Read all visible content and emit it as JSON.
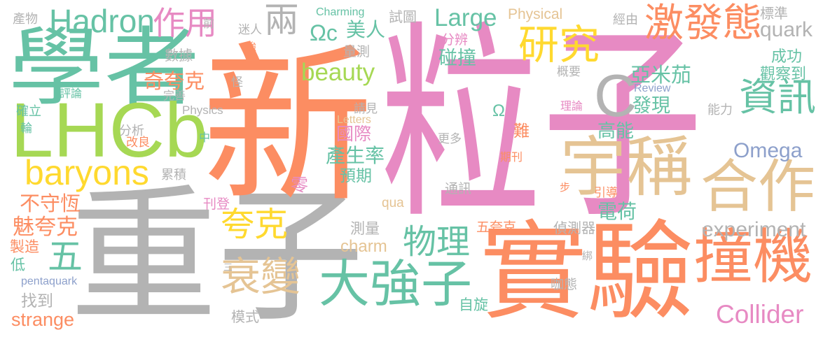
{
  "words": [
    {
      "text": "粒子",
      "color": "#e78ac3"
    },
    {
      "text": "重子",
      "color": "#b3b3b3"
    },
    {
      "text": "新",
      "color": "#fc8d62"
    },
    {
      "text": "實驗",
      "color": "#fc8d62"
    },
    {
      "text": "學者",
      "color": "#66c2a5"
    },
    {
      "text": "LHCb",
      "color": "#a6d854"
    },
    {
      "text": "C",
      "color": "#b3b3b3"
    },
    {
      "text": "宇稱",
      "color": "#e5c494"
    },
    {
      "text": "合作",
      "color": "#e5c494"
    },
    {
      "text": "撞機",
      "color": "#fc8d62"
    },
    {
      "text": "激發態",
      "color": "#fc8d62"
    },
    {
      "text": "研究",
      "color": "#ffd92f"
    },
    {
      "text": "資訊",
      "color": "#66c2a5"
    },
    {
      "text": "大強子",
      "color": "#66c2a5"
    },
    {
      "text": "衰變",
      "color": "#e5c494"
    },
    {
      "text": "夸克",
      "color": "#ffd92f"
    },
    {
      "text": "物理",
      "color": "#66c2a5"
    },
    {
      "text": "五",
      "color": "#66c2a5"
    },
    {
      "text": "作用",
      "color": "#e78ac3"
    },
    {
      "text": "Hadron",
      "color": "#66c2a5"
    },
    {
      "text": "baryons",
      "color": "#ffd92f"
    },
    {
      "text": "兩",
      "color": "#b3b3b3"
    },
    {
      "text": "Large",
      "color": "#66c2a5"
    },
    {
      "text": "quark",
      "color": "#b3b3b3"
    },
    {
      "text": "beauty",
      "color": "#a6d854"
    },
    {
      "text": "奇夸克",
      "color": "#fc8d62"
    },
    {
      "text": "亞米茄",
      "color": "#66c2a5"
    },
    {
      "text": "發現",
      "color": "#66c2a5"
    },
    {
      "text": "高能",
      "color": "#66c2a5"
    },
    {
      "text": "Omega",
      "color": "#8da0cb"
    },
    {
      "text": "Collider",
      "color": "#e78ac3"
    },
    {
      "text": "experiment",
      "color": "#b3b3b3"
    },
    {
      "text": "電荷",
      "color": "#66c2a5"
    },
    {
      "text": "國際",
      "color": "#e78ac3"
    },
    {
      "text": "產生率",
      "color": "#66c2a5"
    },
    {
      "text": "預期",
      "color": "#66c2a5"
    },
    {
      "text": "零",
      "color": "#e78ac3"
    },
    {
      "text": "美人",
      "color": "#66c2a5"
    },
    {
      "text": "Ωc",
      "color": "#66c2a5"
    },
    {
      "text": "試圖",
      "color": "#b3b3b3"
    },
    {
      "text": "Physical",
      "color": "#e5c494"
    },
    {
      "text": "Charming",
      "color": "#66c2a5"
    },
    {
      "text": "前",
      "color": "#b3b3b3"
    },
    {
      "text": "迷人",
      "color": "#b3b3b3"
    },
    {
      "text": "數據",
      "color": "#b3b3b3"
    },
    {
      "text": "強",
      "color": "#fc8d62"
    },
    {
      "text": "量測",
      "color": "#b3b3b3"
    },
    {
      "text": "分辨",
      "color": "#e78ac3"
    },
    {
      "text": "碰撞",
      "color": "#66c2a5"
    },
    {
      "text": "經由",
      "color": "#b3b3b3"
    },
    {
      "text": "標準",
      "color": "#b3b3b3"
    },
    {
      "text": "產物",
      "color": "#b3b3b3"
    },
    {
      "text": "成功",
      "color": "#66c2a5"
    },
    {
      "text": "概要",
      "color": "#b3b3b3"
    },
    {
      "text": "觀察到",
      "color": "#66c2a5"
    },
    {
      "text": "Review",
      "color": "#8da0cb"
    },
    {
      "text": "Ω",
      "color": "#66c2a5"
    },
    {
      "text": "理論",
      "color": "#e78ac3"
    },
    {
      "text": "能力",
      "color": "#b3b3b3"
    },
    {
      "text": "難",
      "color": "#fc8d62"
    },
    {
      "text": "更多",
      "color": "#b3b3b3"
    },
    {
      "text": "期刊",
      "color": "#fc8d62"
    },
    {
      "text": "Letters",
      "color": "#e5c494"
    },
    {
      "text": "請見",
      "color": "#b3b3b3"
    },
    {
      "text": "怪",
      "color": "#b3b3b3"
    },
    {
      "text": "完善",
      "color": "#b3b3b3"
    },
    {
      "text": "Physics",
      "color": "#b3b3b3"
    },
    {
      "text": "評論",
      "color": "#66c2a5"
    },
    {
      "text": "確立",
      "color": "#66c2a5"
    },
    {
      "text": "輪",
      "color": "#66c2a5"
    },
    {
      "text": "分析",
      "color": "#b3b3b3"
    },
    {
      "text": "改良",
      "color": "#fc8d62"
    },
    {
      "text": "中",
      "color": "#66c2a5"
    },
    {
      "text": "累積",
      "color": "#b3b3b3"
    },
    {
      "text": "通訊",
      "color": "#b3b3b3"
    },
    {
      "text": "步",
      "color": "#fc8d62"
    },
    {
      "text": "引導",
      "color": "#fc8d62"
    },
    {
      "text": "不守恆",
      "color": "#fc8d62"
    },
    {
      "text": "刊登",
      "color": "#e78ac3"
    },
    {
      "text": "qua",
      "color": "#e5c494"
    },
    {
      "text": "魅夸克",
      "color": "#fc8d62"
    },
    {
      "text": "測量",
      "color": "#b3b3b3"
    },
    {
      "text": "五夸克",
      "color": "#fc8d62"
    },
    {
      "text": "偵測器",
      "color": "#b3b3b3"
    },
    {
      "text": "製造",
      "color": "#fc8d62"
    },
    {
      "text": "charm",
      "color": "#e5c494"
    },
    {
      "text": "低",
      "color": "#66c2a5"
    },
    {
      "text": "三",
      "color": "#b3b3b3"
    },
    {
      "text": "綁",
      "color": "#b3b3b3"
    },
    {
      "text": "pentaquark",
      "color": "#8da0cb"
    },
    {
      "text": "咖態",
      "color": "#b3b3b3"
    },
    {
      "text": "找到",
      "color": "#b3b3b3"
    },
    {
      "text": "自旋",
      "color": "#66c2a5"
    },
    {
      "text": "模式",
      "color": "#b3b3b3"
    },
    {
      "text": "strange",
      "color": "#fc8d62"
    }
  ]
}
